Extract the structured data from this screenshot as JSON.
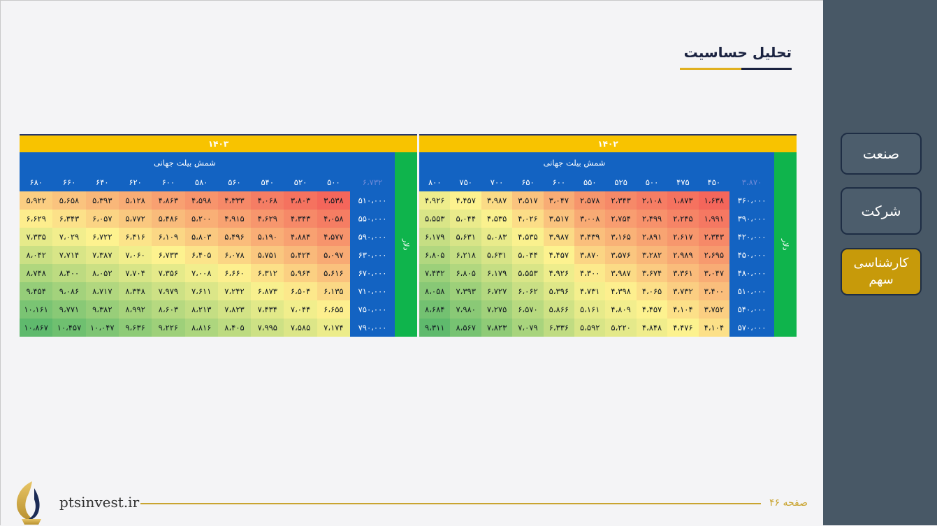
{
  "sidebar": {
    "items": [
      "صنعت",
      "شرکت",
      "کارشناسی سهم"
    ],
    "active_index": 2
  },
  "page": {
    "title": "تحلیل حساسیت",
    "page_label": "صفحه ۴۶",
    "brand": "ptsinvest.ir"
  },
  "colors": {
    "low": "#f4665b",
    "mid": "#fdf28f",
    "high": "#5fba6d",
    "accent": "#c79a0a",
    "year_band": "#f8c300",
    "header_blue": "#1363c2",
    "side_green": "#0fb44c"
  },
  "tables": [
    {
      "year": "۱۴۰۲",
      "subtitle": "شمش بیلت جهانی",
      "side_label": "دلار",
      "corner": "۳،۸۷۰",
      "columns": [
        "۴۵۰",
        "۴۷۵",
        "۵۰۰",
        "۵۲۵",
        "۵۵۰",
        "۶۰۰",
        "۶۵۰",
        "۷۰۰",
        "۷۵۰",
        "۸۰۰"
      ],
      "rows": [
        {
          "label": "۳۶۰،۰۰۰",
          "cells": [
            "۱،۶۳۸",
            "۱،۸۷۳",
            "۲،۱۰۸",
            "۲،۳۴۳",
            "۲،۵۷۸",
            "۳،۰۴۷",
            "۳،۵۱۷",
            "۳،۹۸۷",
            "۴،۴۵۷",
            "۴،۹۲۶"
          ]
        },
        {
          "label": "۳۹۰،۰۰۰",
          "cells": [
            "۱،۹۹۱",
            "۲،۲۴۵",
            "۲،۴۹۹",
            "۲،۷۵۴",
            "۳،۰۰۸",
            "۳،۵۱۷",
            "۴،۰۲۶",
            "۴،۵۳۵",
            "۵،۰۴۴",
            "۵،۵۵۳"
          ]
        },
        {
          "label": "۴۲۰،۰۰۰",
          "cells": [
            "۲،۳۴۳",
            "۲،۶۱۷",
            "۲،۸۹۱",
            "۳،۱۶۵",
            "۳،۴۳۹",
            "۳،۹۸۷",
            "۴،۵۳۵",
            "۵،۰۸۳",
            "۵،۶۳۱",
            "۶،۱۷۹"
          ]
        },
        {
          "label": "۴۵۰،۰۰۰",
          "cells": [
            "۲،۶۹۵",
            "۲،۹۸۹",
            "۳،۲۸۲",
            "۳،۵۷۶",
            "۳،۸۷۰",
            "۴،۴۵۷",
            "۵،۰۴۴",
            "۵،۶۳۱",
            "۶،۲۱۸",
            "۶،۸۰۵"
          ]
        },
        {
          "label": "۴۸۰،۰۰۰",
          "cells": [
            "۳،۰۴۷",
            "۳،۳۶۱",
            "۳،۶۷۴",
            "۳،۹۸۷",
            "۴،۳۰۰",
            "۴،۹۲۶",
            "۵،۵۵۳",
            "۶،۱۷۹",
            "۶،۸۰۵",
            "۷،۴۳۲"
          ]
        },
        {
          "label": "۵۱۰،۰۰۰",
          "cells": [
            "۳،۴۰۰",
            "۳،۷۳۲",
            "۴،۰۶۵",
            "۴،۳۹۸",
            "۴،۷۳۱",
            "۵،۳۹۶",
            "۶،۰۶۲",
            "۶،۷۲۷",
            "۷،۳۹۳",
            "۸،۰۵۸"
          ]
        },
        {
          "label": "۵۴۰،۰۰۰",
          "cells": [
            "۳،۷۵۲",
            "۴،۱۰۴",
            "۴،۴۵۷",
            "۴،۸۰۹",
            "۵،۱۶۱",
            "۵،۸۶۶",
            "۶،۵۷۰",
            "۷،۲۷۵",
            "۷،۹۸۰",
            "۸،۶۸۴"
          ]
        },
        {
          "label": "۵۷۰،۰۰۰",
          "cells": [
            "۴،۱۰۴",
            "۴،۴۷۶",
            "۴،۸۴۸",
            "۵،۲۲۰",
            "۵،۵۹۲",
            "۶،۳۳۶",
            "۷،۰۷۹",
            "۷،۸۲۳",
            "۸،۵۶۷",
            "۹،۳۱۱"
          ]
        }
      ]
    },
    {
      "year": "۱۴۰۳",
      "subtitle": "شمش بیلت جهانی",
      "side_label": "دلار",
      "corner": "۶،۷۳۲",
      "columns": [
        "۵۰۰",
        "۵۲۰",
        "۵۴۰",
        "۵۶۰",
        "۵۸۰",
        "۶۰۰",
        "۶۲۰",
        "۶۴۰",
        "۶۶۰",
        "۶۸۰"
      ],
      "rows": [
        {
          "label": "۵۱۰،۰۰۰",
          "cells": [
            "۳،۵۳۸",
            "۳،۸۰۳",
            "۴،۰۶۸",
            "۴،۳۳۳",
            "۴،۵۹۸",
            "۴،۸۶۳",
            "۵،۱۲۸",
            "۵،۳۹۳",
            "۵،۶۵۸",
            "۵،۹۲۲"
          ]
        },
        {
          "label": "۵۵۰،۰۰۰",
          "cells": [
            "۴،۰۵۸",
            "۴،۳۴۳",
            "۴،۶۲۹",
            "۴،۹۱۵",
            "۵،۲۰۰",
            "۵،۴۸۶",
            "۵،۷۷۲",
            "۶،۰۵۷",
            "۶،۳۴۳",
            "۶،۶۲۹"
          ]
        },
        {
          "label": "۵۹۰،۰۰۰",
          "cells": [
            "۴،۵۷۷",
            "۴،۸۸۴",
            "۵،۱۹۰",
            "۵،۴۹۶",
            "۵،۸۰۳",
            "۶،۱۰۹",
            "۶،۴۱۶",
            "۶،۷۲۲",
            "۷،۰۲۹",
            "۷،۳۳۵"
          ]
        },
        {
          "label": "۶۳۰،۰۰۰",
          "cells": [
            "۵،۰۹۷",
            "۵،۴۲۴",
            "۵،۷۵۱",
            "۶،۰۷۸",
            "۶،۴۰۵",
            "۶،۷۳۳",
            "۷،۰۶۰",
            "۷،۳۸۷",
            "۷،۷۱۴",
            "۸،۰۴۲"
          ]
        },
        {
          "label": "۶۷۰،۰۰۰",
          "cells": [
            "۵،۶۱۶",
            "۵،۹۶۴",
            "۶،۳۱۲",
            "۶،۶۶۰",
            "۷،۰۰۸",
            "۷،۳۵۶",
            "۷،۷۰۴",
            "۸،۰۵۲",
            "۸،۴۰۰",
            "۸،۷۴۸"
          ]
        },
        {
          "label": "۷۱۰،۰۰۰",
          "cells": [
            "۶،۱۳۵",
            "۶،۵۰۴",
            "۶،۸۷۳",
            "۷،۲۴۲",
            "۷،۶۱۱",
            "۷،۹۷۹",
            "۸،۳۴۸",
            "۸،۷۱۷",
            "۹،۰۸۶",
            "۹،۴۵۴"
          ]
        },
        {
          "label": "۷۵۰،۰۰۰",
          "cells": [
            "۶،۶۵۵",
            "۷،۰۴۴",
            "۷،۴۳۴",
            "۷،۸۲۳",
            "۸،۲۱۳",
            "۸،۶۰۳",
            "۸،۹۹۲",
            "۹،۳۸۲",
            "۹،۷۷۱",
            "۱۰،۱۶۱"
          ]
        },
        {
          "label": "۷۹۰،۰۰۰",
          "cells": [
            "۷،۱۷۴",
            "۷،۵۸۵",
            "۷،۹۹۵",
            "۸،۴۰۵",
            "۸،۸۱۶",
            "۹،۲۲۶",
            "۹،۶۳۶",
            "۱۰،۰۴۷",
            "۱۰،۴۵۷",
            "۱۰،۸۶۷"
          ]
        }
      ]
    }
  ]
}
